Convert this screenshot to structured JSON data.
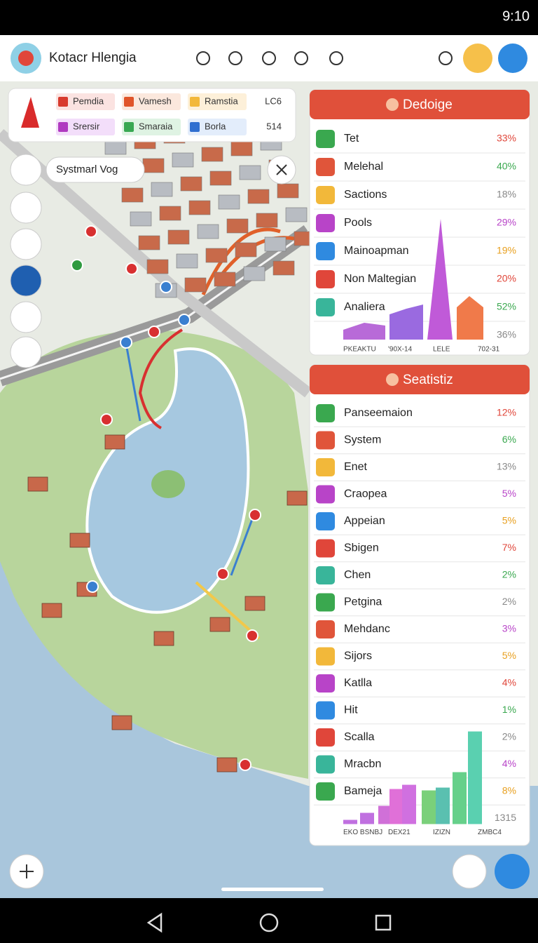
{
  "status_bar": {
    "time": "9:10"
  },
  "header": {
    "title": "Kotacr Hlengia"
  },
  "legend": {
    "rows": [
      [
        "Pemdia",
        "Vamesh",
        "Ramstia",
        "LC6"
      ],
      [
        "Srersir",
        "Smaraia",
        "Borla",
        "514"
      ]
    ]
  },
  "search_chip": {
    "label": "Systmarl Vog"
  },
  "panel_top": {
    "title": "Dedoige",
    "rows": [
      {
        "label": "Tet",
        "value": "33%"
      },
      {
        "label": "Melehal",
        "value": "40%"
      },
      {
        "label": "Sactions",
        "value": "18%"
      },
      {
        "label": "Pools",
        "value": "29%"
      },
      {
        "label": "Mainoapman",
        "value": "19%"
      },
      {
        "label": "Non Maltegian",
        "value": "20%"
      },
      {
        "label": "Analiera",
        "value": "52%"
      }
    ],
    "chart_labels": [
      "PKEAKTU",
      "'90X-14",
      "LELE",
      "702-31"
    ],
    "chart_value": "36%"
  },
  "panel_bottom": {
    "title": "Seatistiz",
    "rows": [
      {
        "label": "Panseemaion",
        "value": "12%"
      },
      {
        "label": "System",
        "value": "6%"
      },
      {
        "label": "Enet",
        "value": "13%"
      },
      {
        "label": "Craopea",
        "value": "5%"
      },
      {
        "label": "Appeian",
        "value": "5%"
      },
      {
        "label": "Sbigen",
        "value": "7%"
      },
      {
        "label": "Chen",
        "value": "2%"
      },
      {
        "label": "Petgina",
        "value": "2%"
      },
      {
        "label": "Mehdanc",
        "value": "3%"
      },
      {
        "label": "Sijors",
        "value": "5%"
      },
      {
        "label": "Katlla",
        "value": "4%"
      },
      {
        "label": "Hit",
        "value": "1%"
      },
      {
        "label": "Scalla",
        "value": "2%"
      },
      {
        "label": "Mracbn",
        "value": "4%"
      },
      {
        "label": "Bameja",
        "value": "8%"
      }
    ],
    "chart_labels": [
      "EKO BSNBJ",
      "DEX21",
      "IZIZN",
      "ZMBC4"
    ],
    "chart_value": "1315"
  }
}
